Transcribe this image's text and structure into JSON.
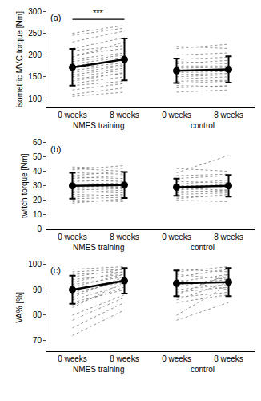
{
  "chart_data": [
    {
      "type": "line",
      "title": "(a)",
      "y_label": "isometric MVC torque [Nm]",
      "categories": [
        "0 weeks",
        "8 weeks",
        "0 weeks",
        "8 weeks"
      ],
      "ylim": [
        80,
        300
      ],
      "yticks": [
        100,
        150,
        200,
        250,
        300
      ],
      "annotations": [
        {
          "text": "***",
          "x_from": 0,
          "x_to": 1,
          "y": 282
        }
      ],
      "groups": [
        {
          "name": "NMES training",
          "mean": [
            172,
            190
          ],
          "sd": [
            42,
            48
          ],
          "subjects": [
            [
              250,
              268
            ],
            [
              245,
              262
            ],
            [
              230,
              255
            ],
            [
              215,
              240
            ],
            [
              210,
              222
            ],
            [
              200,
              215
            ],
            [
              195,
              230
            ],
            [
              190,
              205
            ],
            [
              185,
              200
            ],
            [
              180,
              195
            ],
            [
              175,
              190
            ],
            [
              170,
              182
            ],
            [
              165,
              178
            ],
            [
              160,
              175
            ],
            [
              155,
              170
            ],
            [
              150,
              165
            ],
            [
              145,
              158
            ],
            [
              140,
              160
            ],
            [
              135,
              150
            ],
            [
              130,
              140
            ],
            [
              120,
              135
            ],
            [
              110,
              125
            ],
            [
              105,
              115
            ]
          ]
        },
        {
          "name": "control",
          "mean": [
            164,
            167
          ],
          "sd": [
            28,
            30
          ],
          "subjects": [
            [
              220,
              215
            ],
            [
              215,
              225
            ],
            [
              200,
              205
            ],
            [
              190,
              195
            ],
            [
              185,
              180
            ],
            [
              180,
              188
            ],
            [
              175,
              175
            ],
            [
              170,
              172
            ],
            [
              165,
              168
            ],
            [
              160,
              162
            ],
            [
              155,
              158
            ],
            [
              150,
              155
            ],
            [
              145,
              150
            ],
            [
              140,
              142
            ],
            [
              135,
              140
            ],
            [
              130,
              128
            ],
            [
              125,
              130
            ],
            [
              115,
              120
            ]
          ]
        }
      ]
    },
    {
      "type": "line",
      "title": "(b)",
      "y_label": "twitch torque [Nm]",
      "categories": [
        "0 weeks",
        "8 weeks",
        "0 weeks",
        "8 weeks"
      ],
      "ylim": [
        0,
        60
      ],
      "yticks": [
        0,
        10,
        20,
        30,
        40,
        50,
        60
      ],
      "groups": [
        {
          "name": "NMES training",
          "mean": [
            30,
            30.5
          ],
          "sd": [
            9,
            9
          ],
          "subjects": [
            [
              43,
              42
            ],
            [
              42,
              40
            ],
            [
              41,
              44
            ],
            [
              39,
              38
            ],
            [
              37,
              40
            ],
            [
              36,
              35
            ],
            [
              35,
              37
            ],
            [
              34,
              33
            ],
            [
              33,
              34
            ],
            [
              31,
              32
            ],
            [
              30,
              29
            ],
            [
              29,
              30
            ],
            [
              28,
              29
            ],
            [
              27,
              28
            ],
            [
              26,
              25
            ],
            [
              25,
              27
            ],
            [
              24,
              23
            ],
            [
              22,
              24
            ],
            [
              21,
              22
            ],
            [
              20,
              19
            ],
            [
              19,
              20
            ],
            [
              18,
              21
            ]
          ]
        },
        {
          "name": "control",
          "mean": [
            29,
            30
          ],
          "sd": [
            6,
            7.5
          ],
          "subjects": [
            [
              42,
              40
            ],
            [
              39,
              51
            ],
            [
              37,
              38
            ],
            [
              35,
              37
            ],
            [
              33,
              32
            ],
            [
              31,
              34
            ],
            [
              30,
              30
            ],
            [
              29,
              31
            ],
            [
              28,
              27
            ],
            [
              27,
              29
            ],
            [
              26,
              26
            ],
            [
              25,
              27
            ],
            [
              24,
              25
            ],
            [
              22,
              23
            ],
            [
              21,
              24
            ],
            [
              20,
              19
            ]
          ]
        }
      ]
    },
    {
      "type": "line",
      "title": "(c)",
      "y_label": "VA% [%]",
      "categories": [
        "0 weeks",
        "8 weeks",
        "0 weeks",
        "8 weeks"
      ],
      "ylim": [
        66,
        100
      ],
      "yticks": [
        70,
        80,
        90,
        100
      ],
      "groups": [
        {
          "name": "NMES training",
          "mean": [
            90,
            93.5
          ],
          "sd": [
            5.5,
            5
          ],
          "subjects": [
            [
              98,
              99
            ],
            [
              97,
              98
            ],
            [
              96,
              97
            ],
            [
              95,
              98
            ],
            [
              94,
              96
            ],
            [
              93,
              97
            ],
            [
              92,
              95
            ],
            [
              91,
              96
            ],
            [
              90,
              94
            ],
            [
              89,
              93
            ],
            [
              88,
              94
            ],
            [
              87,
              95
            ],
            [
              86,
              92
            ],
            [
              85,
              90
            ],
            [
              84,
              91
            ],
            [
              83,
              93
            ],
            [
              80,
              88
            ],
            [
              78,
              87
            ],
            [
              75,
              85
            ],
            [
              72,
              82
            ]
          ]
        },
        {
          "name": "control",
          "mean": [
            92.5,
            93
          ],
          "sd": [
            5,
            5.5
          ],
          "subjects": [
            [
              98,
              97
            ],
            [
              97,
              99
            ],
            [
              96,
              94
            ],
            [
              95,
              98
            ],
            [
              94,
              90
            ],
            [
              93,
              96
            ],
            [
              92,
              94
            ],
            [
              91,
              95
            ],
            [
              90,
              92
            ],
            [
              89,
              91
            ],
            [
              88,
              96
            ],
            [
              87,
              89
            ],
            [
              86,
              93
            ],
            [
              85,
              88
            ],
            [
              80,
              92
            ],
            [
              78,
              85
            ]
          ]
        }
      ]
    }
  ]
}
